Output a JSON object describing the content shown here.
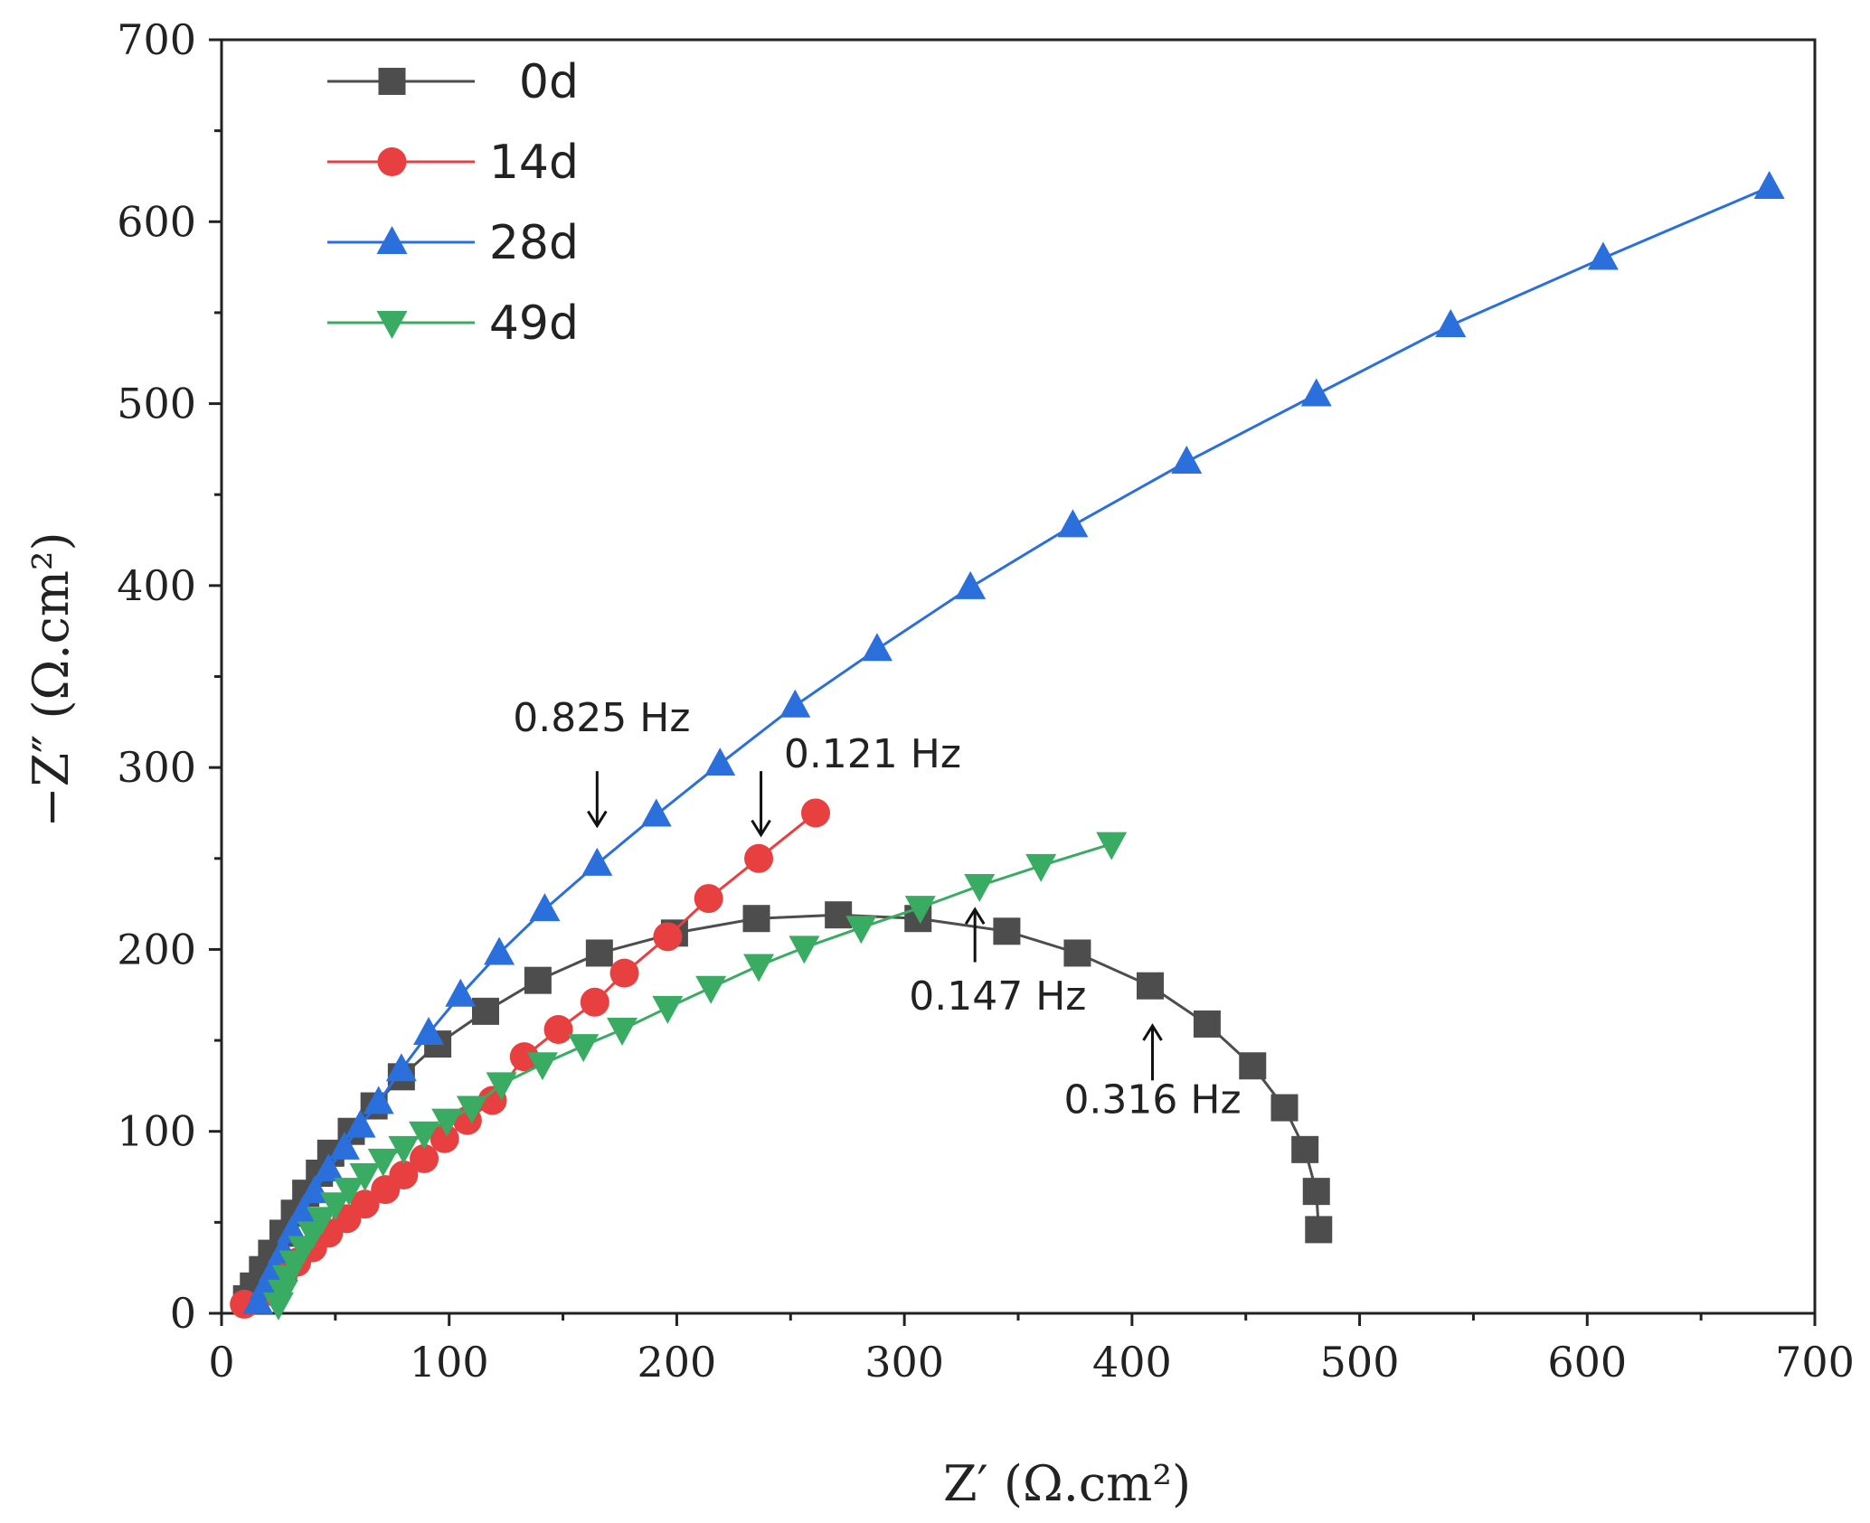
{
  "chart_data": {
    "type": "scatter",
    "title": "",
    "xlabel": "Z′ (Ω.cm²)",
    "ylabel": "−Z″ (Ω.cm²)",
    "xlim": [
      0,
      700
    ],
    "ylim": [
      0,
      700
    ],
    "xticks": [
      0,
      100,
      200,
      300,
      400,
      500,
      600,
      700
    ],
    "yticks": [
      0,
      100,
      200,
      300,
      400,
      500,
      600,
      700
    ],
    "xtick_labels": [
      "0",
      "100",
      "200",
      "300",
      "400",
      "500",
      "600",
      "700"
    ],
    "ytick_labels": [
      "0",
      "100",
      "200",
      "300",
      "400",
      "500",
      "600",
      "700"
    ],
    "grid": false,
    "legend_position": "top-left",
    "series": [
      {
        "name": "0d",
        "color": "#4d4d4d",
        "marker": "square",
        "points": [
          [
            11,
            8
          ],
          [
            14,
            15
          ],
          [
            18,
            24
          ],
          [
            22,
            33
          ],
          [
            27,
            44
          ],
          [
            32,
            55
          ],
          [
            37,
            66
          ],
          [
            43,
            77
          ],
          [
            48,
            88
          ],
          [
            57,
            100
          ],
          [
            67,
            114
          ],
          [
            79,
            130
          ],
          [
            95,
            148
          ],
          [
            116,
            166
          ],
          [
            139,
            183
          ],
          [
            166,
            198
          ],
          [
            199,
            209
          ],
          [
            235,
            217
          ],
          [
            271,
            219
          ],
          [
            306,
            217
          ],
          [
            345,
            210
          ],
          [
            376,
            198
          ],
          [
            408,
            180
          ],
          [
            433,
            159
          ],
          [
            453,
            136
          ],
          [
            467,
            113
          ],
          [
            476,
            90
          ],
          [
            481,
            67
          ],
          [
            482,
            46
          ]
        ]
      },
      {
        "name": "14d",
        "color": "#e84040",
        "marker": "circle",
        "points": [
          [
            10,
            5
          ],
          [
            22,
            12
          ],
          [
            27,
            20
          ],
          [
            33,
            28
          ],
          [
            40,
            36
          ],
          [
            47,
            44
          ],
          [
            55,
            52
          ],
          [
            63,
            60
          ],
          [
            72,
            68
          ],
          [
            80,
            76
          ],
          [
            89,
            85
          ],
          [
            98,
            96
          ],
          [
            108,
            106
          ],
          [
            119,
            117
          ],
          [
            133,
            141
          ],
          [
            148,
            156
          ],
          [
            164,
            171
          ],
          [
            177,
            187
          ],
          [
            196,
            207
          ],
          [
            214,
            228
          ],
          [
            236,
            250
          ],
          [
            261,
            275
          ]
        ]
      },
      {
        "name": "28d",
        "color": "#2a6fdb",
        "marker": "triangle-up",
        "points": [
          [
            16,
            6
          ],
          [
            19,
            14
          ],
          [
            23,
            24
          ],
          [
            27,
            34
          ],
          [
            31,
            45
          ],
          [
            36,
            56
          ],
          [
            41,
            67
          ],
          [
            47,
            79
          ],
          [
            54,
            91
          ],
          [
            61,
            103
          ],
          [
            69,
            116
          ],
          [
            79,
            134
          ],
          [
            91,
            154
          ],
          [
            105,
            175
          ],
          [
            122,
            198
          ],
          [
            142,
            222
          ],
          [
            165,
            247
          ],
          [
            191,
            274
          ],
          [
            219,
            302
          ],
          [
            252,
            334
          ],
          [
            288,
            365
          ],
          [
            329,
            399
          ],
          [
            374,
            433
          ],
          [
            424,
            468
          ],
          [
            481,
            505
          ],
          [
            540,
            543
          ],
          [
            607,
            580
          ],
          [
            680,
            619
          ]
        ]
      },
      {
        "name": "49d",
        "color": "#3aab62",
        "marker": "triangle-down",
        "points": [
          [
            25,
            5
          ],
          [
            27,
            12
          ],
          [
            29,
            20
          ],
          [
            32,
            28
          ],
          [
            36,
            36
          ],
          [
            40,
            44
          ],
          [
            44,
            52
          ],
          [
            50,
            60
          ],
          [
            56,
            68
          ],
          [
            63,
            76
          ],
          [
            71,
            84
          ],
          [
            80,
            91
          ],
          [
            89,
            99
          ],
          [
            99,
            106
          ],
          [
            110,
            113
          ],
          [
            123,
            126
          ],
          [
            141,
            137
          ],
          [
            159,
            147
          ],
          [
            176,
            156
          ],
          [
            196,
            168
          ],
          [
            215,
            179
          ],
          [
            236,
            191
          ],
          [
            256,
            201
          ],
          [
            281,
            212
          ],
          [
            307,
            223
          ],
          [
            333,
            235
          ],
          [
            360,
            246
          ],
          [
            391,
            258
          ]
        ]
      }
    ],
    "annotations": [
      {
        "text": "0.825 Hz",
        "arrow_to": [
          165,
          268
        ],
        "arrow_from": [
          165,
          298
        ],
        "label_at": [
          167,
          320
        ]
      },
      {
        "text": "0.121 Hz",
        "arrow_to": [
          237,
          263
        ],
        "arrow_from": [
          237,
          298
        ],
        "label_at": [
          286,
          300
        ]
      },
      {
        "text": "0.147 Hz",
        "arrow_to": [
          331,
          222
        ],
        "arrow_from": [
          331,
          193
        ],
        "label_at": [
          341,
          167
        ]
      },
      {
        "text": "0.316 Hz",
        "arrow_to": [
          409,
          158
        ],
        "arrow_from": [
          409,
          128
        ],
        "label_at": [
          409,
          110
        ]
      }
    ]
  }
}
